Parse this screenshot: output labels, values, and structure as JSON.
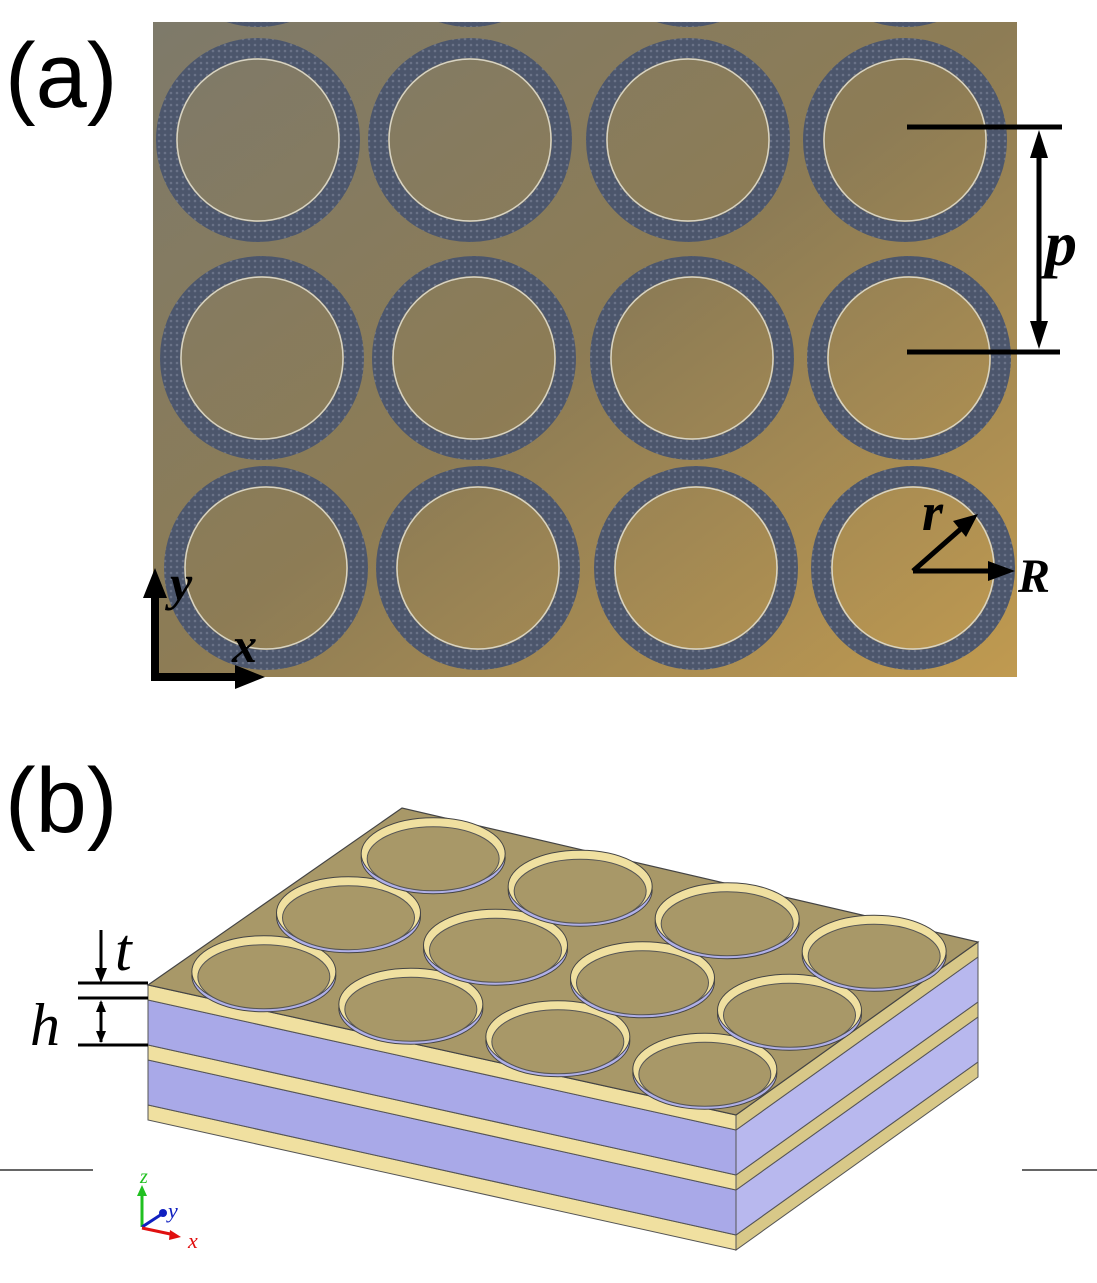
{
  "panel_a": {
    "label": "(a)",
    "period_label": "p",
    "inner_radius_label": "r",
    "outer_radius_label": "R",
    "axis_x_label": "x",
    "axis_y_label": "y",
    "grid": {
      "rows": 3,
      "columns": 4
    },
    "colors": {
      "metal": "#a08a52",
      "ring": "#4a5468"
    }
  },
  "panel_b": {
    "label": "(b)",
    "thickness_label": "t",
    "spacing_label": "h",
    "triad": {
      "x": "x",
      "y": "y",
      "z": "z"
    },
    "grid": {
      "rows": 3,
      "columns": 4
    },
    "colors": {
      "metal": "#f0e0a0",
      "dielectric": "#8c8ce0"
    }
  }
}
